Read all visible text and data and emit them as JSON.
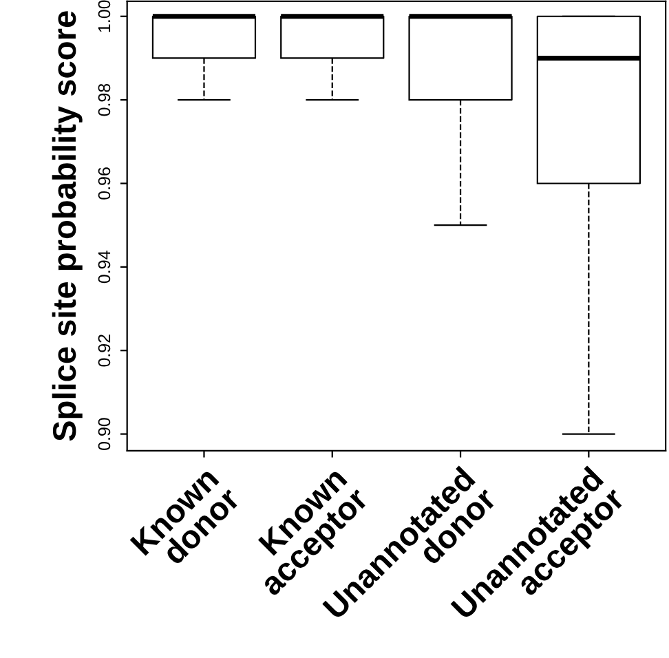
{
  "chart_data": {
    "type": "box",
    "ylabel": "Splice site probability score",
    "categories": [
      "Known\ndonor",
      "Known\nacceptor",
      "Unannotated\ndonor",
      "Unannotated\nacceptor"
    ],
    "boxes": [
      {
        "low": 0.98,
        "q1": 0.99,
        "median": 1.0,
        "q3": 1.0,
        "high": 1.0
      },
      {
        "low": 0.98,
        "q1": 0.99,
        "median": 1.0,
        "q3": 1.0,
        "high": 1.0
      },
      {
        "low": 0.95,
        "q1": 0.98,
        "median": 1.0,
        "q3": 1.0,
        "high": 1.0
      },
      {
        "low": 0.9,
        "q1": 0.96,
        "median": 0.99,
        "q3": 1.0,
        "high": 1.0
      }
    ],
    "ylim": [
      0.896,
      1.0036
    ],
    "yticks": [
      {
        "value": 0.9,
        "label": "0.90"
      },
      0.92,
      0.94,
      0.96,
      0.98,
      {
        "value": 1.0,
        "label": "1.00"
      }
    ],
    "grid": false,
    "line_style": "dashed"
  }
}
